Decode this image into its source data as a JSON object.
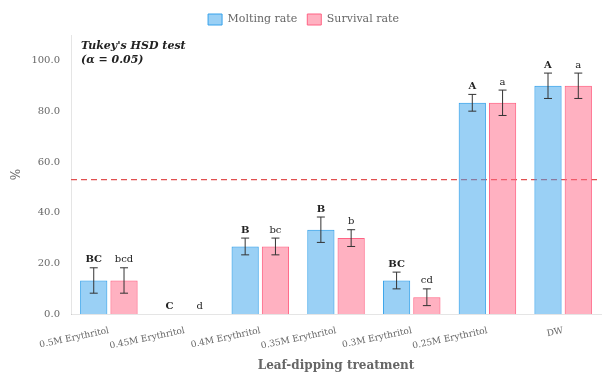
{
  "chart_data": {
    "type": "bar",
    "categories": [
      "0.5M Erythritol",
      "0.45M Erythritol",
      "0.4M Erythritol",
      "0.35M Erythritol",
      "0.3M Erythritol",
      "0.25M Erythritol",
      "DW"
    ],
    "series": [
      {
        "name": "Molting rate",
        "values": [
          13.3,
          0.0,
          26.7,
          33.3,
          13.3,
          83.3,
          90.0
        ],
        "errors": [
          5.0,
          0.0,
          3.3,
          5.0,
          3.3,
          3.3,
          5.0
        ],
        "letters": [
          "BC",
          "C",
          "B",
          "B",
          "BC",
          "A",
          "A"
        ]
      },
      {
        "name": "Survival rate",
        "values": [
          13.3,
          0.0,
          26.7,
          30.0,
          6.7,
          83.3,
          90.0
        ],
        "errors": [
          5.0,
          0.0,
          3.3,
          3.3,
          3.3,
          5.0,
          5.0
        ],
        "letters": [
          "bcd",
          "d",
          "bc",
          "b",
          "cd",
          "a",
          "a"
        ]
      }
    ],
    "xlabel": "Leaf-dipping treatment",
    "ylabel": "%",
    "ylim": [
      0,
      110
    ],
    "yticks": [
      {
        "value": 0,
        "label": "0.0"
      },
      {
        "value": 20,
        "label": "20.0"
      },
      {
        "value": 40,
        "label": "40.0"
      },
      {
        "value": 60,
        "label": "60.0"
      },
      {
        "value": 80,
        "label": "80.0"
      },
      {
        "value": 100,
        "label": "100.0"
      }
    ],
    "reference_lines": [
      {
        "y": 53,
        "color": "#e05050",
        "line_style": "dashed"
      }
    ],
    "annotations": [
      {
        "text": "Tukey's HSD test\n(α = 0.05)"
      }
    ],
    "legend": "top",
    "grid": false
  }
}
